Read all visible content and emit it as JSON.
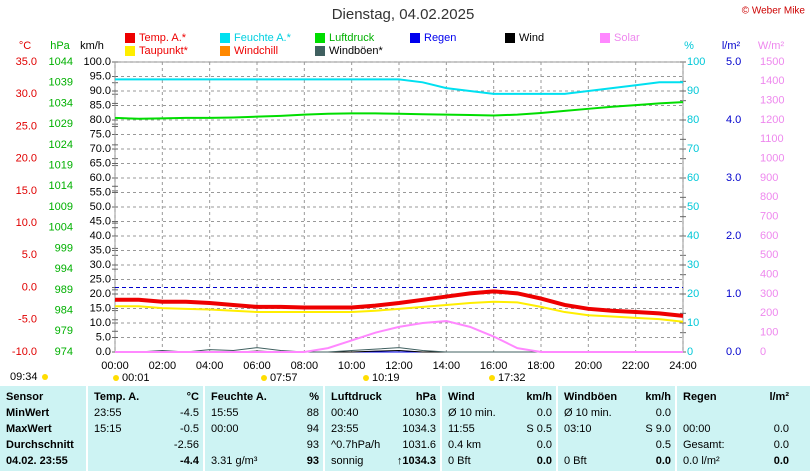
{
  "chart_data": {
    "type": "line",
    "title": "Dienstag, 04.02.2025",
    "credit": "© Weber Mike",
    "x": [
      0,
      1,
      2,
      3,
      4,
      5,
      6,
      7,
      8,
      9,
      10,
      11,
      12,
      13,
      14,
      15,
      16,
      17,
      18,
      19,
      20,
      21,
      22,
      23,
      24
    ],
    "xlim": [
      0,
      24
    ],
    "xticks": [
      {
        "value": 0,
        "label": "00:00"
      },
      {
        "value": 2,
        "label": "02:00"
      },
      {
        "value": 4,
        "label": "04:00"
      },
      {
        "value": 6,
        "label": "06:00"
      },
      {
        "value": 8,
        "label": "08:00"
      },
      {
        "value": 10,
        "label": "10:00"
      },
      {
        "value": 12,
        "label": "12:00"
      },
      {
        "value": 14,
        "label": "14:00"
      },
      {
        "value": 16,
        "label": "16:00"
      },
      {
        "value": 18,
        "label": "18:00"
      },
      {
        "value": 20,
        "label": "20:00"
      },
      {
        "value": 22,
        "label": "22:00"
      },
      {
        "value": 24,
        "label": "24:00"
      }
    ],
    "grid": true,
    "axes": [
      {
        "unit": "°C",
        "color": "#e00000",
        "lim": [
          -10,
          35
        ],
        "ticks": [
          {
            "value": 35,
            "label": "35.0"
          },
          {
            "value": 30,
            "label": "30.0"
          },
          {
            "value": 25,
            "label": "25.0"
          },
          {
            "value": 20,
            "label": "20.0"
          },
          {
            "value": 15,
            "label": "15.0"
          },
          {
            "value": 10,
            "label": "10.0"
          },
          {
            "value": 5,
            "label": "5.0"
          },
          {
            "value": 0,
            "label": "0.0"
          },
          {
            "value": -5,
            "label": "-5.0"
          },
          {
            "value": -10,
            "label": "-10.0"
          }
        ]
      },
      {
        "unit": "hPa",
        "color": "#00b000",
        "lim": [
          974,
          1044
        ],
        "ticks": [
          1044,
          1039,
          1034,
          1029,
          1024,
          1019,
          1014,
          1009,
          1004,
          999,
          994,
          989,
          984,
          979,
          974
        ]
      },
      {
        "unit": "km/h",
        "color": "#000000",
        "lim": [
          0,
          100
        ],
        "ticks": [
          {
            "value": 100,
            "label": "100.0"
          },
          {
            "value": 95,
            "label": "95.0"
          },
          {
            "value": 90,
            "label": "90.0"
          },
          {
            "value": 85,
            "label": "85.0"
          },
          {
            "value": 80,
            "label": "80.0"
          },
          {
            "value": 75,
            "label": "75.0"
          },
          {
            "value": 70,
            "label": "70.0"
          },
          {
            "value": 65,
            "label": "65.0"
          },
          {
            "value": 60,
            "label": "60.0"
          },
          {
            "value": 55,
            "label": "55.0"
          },
          {
            "value": 50,
            "label": "50.0"
          },
          {
            "value": 45,
            "label": "45.0"
          },
          {
            "value": 40,
            "label": "40.0"
          },
          {
            "value": 35,
            "label": "35.0"
          },
          {
            "value": 30,
            "label": "30.0"
          },
          {
            "value": 25,
            "label": "25.0"
          },
          {
            "value": 20,
            "label": "20.0"
          },
          {
            "value": 15,
            "label": "15.0"
          },
          {
            "value": 10,
            "label": "10.0"
          },
          {
            "value": 5,
            "label": "5.0"
          },
          {
            "value": 0,
            "label": "0.0"
          }
        ]
      },
      {
        "unit": "%",
        "color": "#00c8d8",
        "lim": [
          0,
          100
        ],
        "ticks": [
          100,
          90,
          80,
          70,
          60,
          50,
          40,
          30,
          20,
          10,
          0
        ]
      },
      {
        "unit": "l/m²",
        "color": "#0000cc",
        "lim": [
          0,
          5
        ],
        "ticks": [
          {
            "value": 5,
            "label": "5.0"
          },
          {
            "value": 4,
            "label": "4.0"
          },
          {
            "value": 3,
            "label": "3.0"
          },
          {
            "value": 2,
            "label": "2.0"
          },
          {
            "value": 1,
            "label": "1.0"
          },
          {
            "value": 0,
            "label": "0.0"
          }
        ]
      },
      {
        "unit": "W/m²",
        "color": "#ee88ee",
        "lim": [
          0,
          1500
        ],
        "ticks": [
          1500,
          1400,
          1300,
          1200,
          1100,
          1000,
          900,
          800,
          700,
          600,
          500,
          400,
          300,
          200,
          100,
          0
        ]
      }
    ],
    "reference_line": {
      "axis": 0,
      "value": 0,
      "color": "#0000cc"
    },
    "series": [
      {
        "name": "Temp. A.*",
        "color": "#ee0000",
        "label_color": "#ee0000",
        "axis": 0,
        "width": 4,
        "values": [
          -1.9,
          -1.9,
          -2.2,
          -2.2,
          -2.4,
          -2.7,
          -3.0,
          -3.0,
          -3.1,
          -3.1,
          -3.1,
          -2.8,
          -2.4,
          -1.9,
          -1.4,
          -0.9,
          -0.6,
          -0.9,
          -1.7,
          -2.7,
          -3.3,
          -3.6,
          -3.8,
          -4.0,
          -4.4
        ]
      },
      {
        "name": "Feuchte A.*",
        "color": "#00e0f0",
        "label_color": "#00d0e0",
        "axis": 3,
        "width": 2,
        "values": [
          94,
          94,
          94,
          94,
          94,
          94,
          94,
          94,
          94,
          94,
          94,
          94,
          94,
          93,
          91,
          90,
          89,
          89,
          89,
          89,
          90,
          91,
          92,
          93,
          93
        ]
      },
      {
        "name": "Luftdruck",
        "color": "#00dd00",
        "label_color": "#00b000",
        "axis": 1,
        "width": 2,
        "values": [
          1030.5,
          1030.3,
          1030.4,
          1030.5,
          1030.5,
          1030.6,
          1030.8,
          1031.0,
          1031.3,
          1031.5,
          1031.6,
          1031.6,
          1031.5,
          1031.4,
          1031.3,
          1031.2,
          1031.1,
          1031.3,
          1031.7,
          1032.2,
          1032.7,
          1033.2,
          1033.6,
          1034.0,
          1034.3
        ]
      },
      {
        "name": "Regen",
        "color": "#0000ee",
        "label_color": "#0000ee",
        "axis": 4,
        "width": 1,
        "values": [
          0,
          0,
          0,
          0,
          0,
          0,
          0,
          0,
          0,
          0,
          0,
          0,
          0,
          0,
          0,
          0,
          0,
          0,
          0,
          0,
          0,
          0,
          0,
          0,
          0
        ]
      },
      {
        "name": "Wind",
        "color": "#000000",
        "label_color": "#000000",
        "axis": 2,
        "width": 1,
        "values": [
          0,
          0,
          0,
          0,
          0,
          0,
          0.3,
          0,
          0,
          0,
          0,
          0.3,
          0.5,
          0,
          0,
          0,
          0,
          0,
          0,
          0,
          0,
          0,
          0,
          0,
          0
        ]
      },
      {
        "name": "Solar",
        "color": "#ff88ff",
        "label_color": "#ee88ee",
        "axis": 5,
        "width": 2,
        "values": [
          0,
          0,
          0,
          0,
          0,
          0,
          0,
          0,
          0,
          20,
          60,
          100,
          130,
          150,
          160,
          130,
          80,
          20,
          0,
          0,
          0,
          0,
          0,
          0,
          0
        ]
      },
      {
        "name": "Taupunkt*",
        "color": "#ffee00",
        "label_color": "#ee0000",
        "axis": 0,
        "width": 2,
        "values": [
          -2.9,
          -2.9,
          -3.2,
          -3.3,
          -3.4,
          -3.6,
          -3.8,
          -3.8,
          -3.8,
          -3.8,
          -3.8,
          -3.6,
          -3.3,
          -3.0,
          -2.7,
          -2.4,
          -2.2,
          -2.3,
          -3.0,
          -3.8,
          -4.3,
          -4.5,
          -4.7,
          -4.9,
          -5.3
        ]
      },
      {
        "name": "Windchill",
        "color": "#ff8800",
        "label_color": "#ee0000",
        "axis": 0,
        "width": 2,
        "values": [
          null,
          null,
          null,
          null,
          null,
          null,
          null,
          null,
          null,
          null,
          null,
          null,
          null,
          null,
          null,
          null,
          null,
          null,
          null,
          null,
          null,
          null,
          null,
          null,
          null
        ]
      },
      {
        "name": "Windböen*",
        "color": "#406060",
        "label_color": "#000000",
        "axis": 2,
        "width": 1,
        "values": [
          0,
          0,
          0.5,
          0,
          0.8,
          0.5,
          1.5,
          0.5,
          0,
          0,
          0.5,
          1,
          1.5,
          0.5,
          0,
          0,
          0,
          0,
          0,
          0,
          0,
          0,
          0,
          0,
          0
        ]
      }
    ],
    "annotations": [
      "09:34",
      "00:01",
      "07:57",
      "10:19",
      "17:32"
    ]
  },
  "table": {
    "columns": [
      {
        "name": "Sensor"
      },
      {
        "name": "Temp. A.",
        "unit": "°C"
      },
      {
        "name": "Feuchte A.",
        "unit": "%"
      },
      {
        "name": "Luftdruck",
        "unit": "hPa"
      },
      {
        "name": "Wind",
        "unit": "km/h"
      },
      {
        "name": "Windböen",
        "unit": "km/h"
      },
      {
        "name": "Regen",
        "unit": "l/m²"
      }
    ],
    "rows": [
      {
        "label": "MinWert",
        "cells": [
          {
            "left": "23:55",
            "right": "-4.5"
          },
          {
            "left": "15:55",
            "right": "88"
          },
          {
            "left": "00:40",
            "right": "1030.3"
          },
          {
            "left": "Ø 10 min.",
            "right": "0.0"
          },
          {
            "left": "Ø 10 min.",
            "right": "0.0"
          },
          {}
        ]
      },
      {
        "label": "MaxWert",
        "cells": [
          {
            "left": "15:15",
            "right": "-0.5"
          },
          {
            "left": "00:00",
            "right": "94"
          },
          {
            "left": "23:55",
            "right": "1034.3"
          },
          {
            "left": "11:55",
            "right": "S 0.5"
          },
          {
            "left": "03:10",
            "right": "S 9.0"
          },
          {
            "left": "00:00",
            "right": "0.0"
          }
        ]
      },
      {
        "label": "Durchschnitt",
        "cells": [
          {
            "right": "-2.56"
          },
          {
            "right": "93"
          },
          {
            "left": "^0.7hPa/h",
            "right": "1031.6"
          },
          {
            "left": "0.4 km",
            "right": "0.0"
          },
          {
            "right": "0.5"
          },
          {
            "left": "Gesamt:",
            "right": "0.0"
          }
        ]
      },
      {
        "label": "04.02. 23:55",
        "cells": [
          {
            "right": "-4.4"
          },
          {
            "left": "3.31 g/m³",
            "right": "93"
          },
          {
            "left": "sonnig",
            "right": "↑1034.3"
          },
          {
            "left": "0 Bft",
            "right": "0.0"
          },
          {
            "left": "0 Bft",
            "right": "0.0"
          },
          {
            "left": "0.0 l/m²",
            "right": "0.0"
          }
        ]
      }
    ]
  }
}
